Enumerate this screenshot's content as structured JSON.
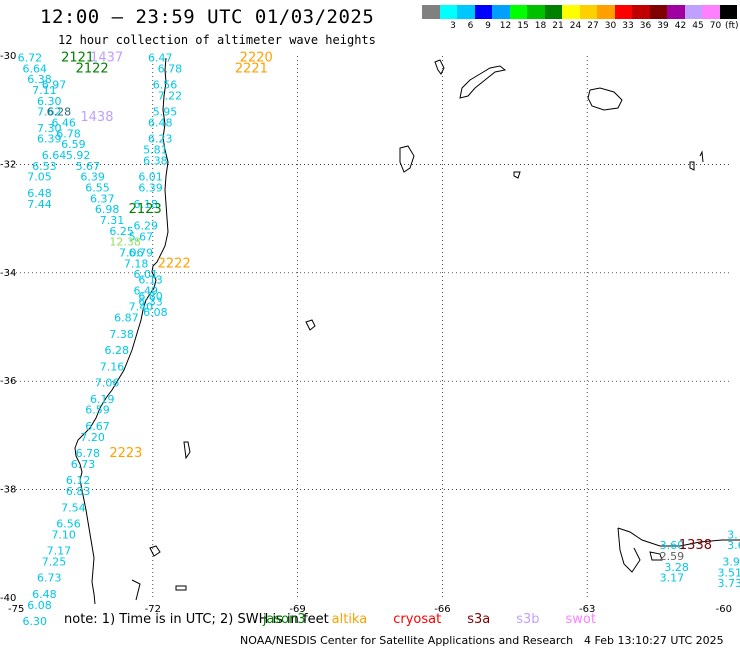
{
  "title": "12:00 — 23:59 UTC 01/03/2025",
  "subtitle": "12 hour collection of altimeter wave heights",
  "legend": {
    "unit": "(ft)",
    "swatches": [
      {
        "label": "",
        "color": "#808080"
      },
      {
        "label": "3",
        "color": "#00ffff"
      },
      {
        "label": "6",
        "color": "#00c8ff"
      },
      {
        "label": "9",
        "color": "#0000ff"
      },
      {
        "label": "12",
        "color": "#00a0ff"
      },
      {
        "label": "15",
        "color": "#00ff00"
      },
      {
        "label": "18",
        "color": "#00c000"
      },
      {
        "label": "21",
        "color": "#008000"
      },
      {
        "label": "24",
        "color": "#ffff00"
      },
      {
        "label": "27",
        "color": "#ffd000"
      },
      {
        "label": "30",
        "color": "#ffa000"
      },
      {
        "label": "33",
        "color": "#ff0000"
      },
      {
        "label": "36",
        "color": "#c00000"
      },
      {
        "label": "39",
        "color": "#800000"
      },
      {
        "label": "42",
        "color": "#a000a0"
      },
      {
        "label": "45",
        "color": "#c0a0ff"
      },
      {
        "label": "70",
        "color": "#ff80ff"
      },
      {
        "label": "",
        "color": "#000000"
      }
    ]
  },
  "axes": {
    "lat_ticks": [
      "-30",
      "-32",
      "-34",
      "-36",
      "-38",
      "-40"
    ],
    "lon_ticks": [
      "-75",
      "-72",
      "-69",
      "-66",
      "-63",
      "-60"
    ]
  },
  "time_labels": [
    {
      "text": "2121",
      "color": "#008000",
      "lon": -73.9,
      "lat": -30.1
    },
    {
      "text": "2122",
      "color": "#008000",
      "lon": -73.6,
      "lat": -30.3
    },
    {
      "text": "1437",
      "color": "#c0a0ff",
      "lon": -73.3,
      "lat": -30.1
    },
    {
      "text": "1438",
      "color": "#c0a0ff",
      "lon": -73.5,
      "lat": -31.2
    },
    {
      "text": "2220",
      "color": "#ffa000",
      "lon": -70.2,
      "lat": -30.1
    },
    {
      "text": "2221",
      "color": "#ffa000",
      "lon": -70.3,
      "lat": -30.3
    },
    {
      "text": "2123",
      "color": "#008000",
      "lon": -72.5,
      "lat": -32.9
    },
    {
      "text": "2222",
      "color": "#ffa000",
      "lon": -71.9,
      "lat": -33.9
    },
    {
      "text": "2223",
      "color": "#ffa000",
      "lon": -72.9,
      "lat": -37.4
    },
    {
      "text": "1338",
      "color": "#800000",
      "lon": -61.1,
      "lat": -39.1
    }
  ],
  "wave_values": [
    {
      "text": "6.72",
      "lon": -74.8,
      "lat": -30.1
    },
    {
      "text": "6.64",
      "lon": -74.7,
      "lat": -30.3
    },
    {
      "text": "6.38",
      "lon": -74.6,
      "lat": -30.5
    },
    {
      "text": "6.97",
      "lon": -74.3,
      "lat": -30.6
    },
    {
      "text": "7.11",
      "lon": -74.5,
      "lat": -30.7
    },
    {
      "text": "6.30",
      "lon": -74.4,
      "lat": -30.9
    },
    {
      "text": "7.62",
      "lon": -74.4,
      "lat": -31.1
    },
    {
      "text": "6.46",
      "lon": -74.1,
      "lat": -31.3
    },
    {
      "text": "7.30",
      "lon": -74.4,
      "lat": -31.4
    },
    {
      "text": "6.78",
      "lon": -74.0,
      "lat": -31.5
    },
    {
      "text": "6.39",
      "lon": -74.4,
      "lat": -31.6
    },
    {
      "text": "6.59",
      "lon": -73.9,
      "lat": -31.7
    },
    {
      "text": "6.64",
      "lon": -74.3,
      "lat": -31.9
    },
    {
      "text": "5.92",
      "lon": -73.8,
      "lat": -31.9
    },
    {
      "text": "6.53",
      "lon": -74.5,
      "lat": -32.1
    },
    {
      "text": "5.67",
      "lon": -73.6,
      "lat": -32.1
    },
    {
      "text": "7.05",
      "lon": -74.6,
      "lat": -32.3
    },
    {
      "text": "6.39",
      "lon": -73.5,
      "lat": -32.3
    },
    {
      "text": "6.48",
      "lon": -74.6,
      "lat": -32.6
    },
    {
      "text": "6.55",
      "lon": -73.4,
      "lat": -32.5
    },
    {
      "text": "7.44",
      "lon": -74.6,
      "lat": -32.8
    },
    {
      "text": "6.37",
      "lon": -73.3,
      "lat": -32.7
    },
    {
      "text": "6.98",
      "lon": -73.2,
      "lat": -32.9
    },
    {
      "text": "7.31",
      "lon": -73.1,
      "lat": -33.1
    },
    {
      "text": "6.25",
      "lon": -72.9,
      "lat": -33.3
    },
    {
      "text": "7.06",
      "lon": -72.7,
      "lat": -33.7
    },
    {
      "text": "7.18",
      "lon": -72.6,
      "lat": -33.9
    },
    {
      "text": "6.01",
      "lon": -72.4,
      "lat": -34.1
    },
    {
      "text": "6.13",
      "lon": -72.3,
      "lat": -34.2
    },
    {
      "text": "6.49",
      "lon": -72.4,
      "lat": -34.4
    },
    {
      "text": "6.80",
      "lon": -72.3,
      "lat": -34.5
    },
    {
      "text": "7.40",
      "lon": -72.5,
      "lat": -34.7
    },
    {
      "text": "6.87",
      "lon": -72.8,
      "lat": -34.9
    },
    {
      "text": "7.38",
      "lon": -72.9,
      "lat": -35.2
    },
    {
      "text": "6.28",
      "lon": -73.0,
      "lat": -35.5
    },
    {
      "text": "7.16",
      "lon": -73.1,
      "lat": -35.8
    },
    {
      "text": "7.06",
      "lon": -73.2,
      "lat": -36.1
    },
    {
      "text": "6.19",
      "lon": -73.3,
      "lat": -36.4
    },
    {
      "text": "6.59",
      "lon": -73.4,
      "lat": -36.6
    },
    {
      "text": "6.67",
      "lon": -73.4,
      "lat": -36.9
    },
    {
      "text": "7.20",
      "lon": -73.5,
      "lat": -37.1
    },
    {
      "text": "6.78",
      "lon": -73.6,
      "lat": -37.4
    },
    {
      "text": "6.73",
      "lon": -73.7,
      "lat": -37.6
    },
    {
      "text": "6.12",
      "lon": -73.8,
      "lat": -37.9
    },
    {
      "text": "6.83",
      "lon": -73.8,
      "lat": -38.1
    },
    {
      "text": "7.54",
      "lon": -73.9,
      "lat": -38.4
    },
    {
      "text": "6.56",
      "lon": -74.0,
      "lat": -38.7
    },
    {
      "text": "7.10",
      "lon": -74.1,
      "lat": -38.9
    },
    {
      "text": "7.17",
      "lon": -74.2,
      "lat": -39.2
    },
    {
      "text": "7.25",
      "lon": -74.3,
      "lat": -39.4
    },
    {
      "text": "6.73",
      "lon": -74.4,
      "lat": -39.7
    },
    {
      "text": "6.48",
      "lon": -74.5,
      "lat": -40.0
    },
    {
      "text": "6.08",
      "lon": -74.6,
      "lat": -40.2
    },
    {
      "text": "6.30",
      "lon": -74.7,
      "lat": -40.5
    },
    {
      "text": "6.47",
      "lon": -72.1,
      "lat": -30.1
    },
    {
      "text": "6.78",
      "lon": -71.9,
      "lat": -30.3
    },
    {
      "text": "6.56",
      "lon": -72.0,
      "lat": -30.6
    },
    {
      "text": "7.22",
      "lon": -71.9,
      "lat": -30.8
    },
    {
      "text": "5.95",
      "lon": -72.0,
      "lat": -31.1
    },
    {
      "text": "6.48",
      "lon": -72.1,
      "lat": -31.3
    },
    {
      "text": "6.23",
      "lon": -72.1,
      "lat": -31.6
    },
    {
      "text": "5.81",
      "lon": -72.2,
      "lat": -31.8
    },
    {
      "text": "6.38",
      "lon": -72.2,
      "lat": -32.0
    },
    {
      "text": "6.01",
      "lon": -72.3,
      "lat": -32.3
    },
    {
      "text": "6.39",
      "lon": -72.3,
      "lat": -32.5
    },
    {
      "text": "6.18",
      "lon": -72.4,
      "lat": -32.8
    },
    {
      "text": "6.29",
      "lon": -72.4,
      "lat": -33.2
    },
    {
      "text": "5.67",
      "lon": -72.5,
      "lat": -33.4
    },
    {
      "text": "6.79",
      "lon": -72.5,
      "lat": -33.7
    },
    {
      "text": "6.33",
      "lon": -72.3,
      "lat": -34.6
    },
    {
      "text": "6.08",
      "lon": -72.2,
      "lat": -34.8
    },
    {
      "text": "3.60",
      "lon": -61.5,
      "lat": -39.1
    },
    {
      "text": "3.28",
      "lon": -61.4,
      "lat": -39.5
    },
    {
      "text": "3.17",
      "lon": -61.5,
      "lat": -39.7
    },
    {
      "text": "3.9",
      "lon": -60.2,
      "lat": -39.4
    },
    {
      "text": "3.51",
      "lon": -60.3,
      "lat": -39.6
    },
    {
      "text": "3.73",
      "lon": -60.3,
      "lat": -39.8
    },
    {
      "text": "3.6",
      "lon": -60.1,
      "lat": -39.1
    },
    {
      "text": "3.",
      "lon": -60.1,
      "lat": -38.9
    }
  ],
  "wave_gray": [
    {
      "text": "2.59",
      "lon": -61.5,
      "lat": -39.3
    }
  ],
  "wave_greenish": [
    {
      "text": "12.38",
      "lon": -72.9,
      "lat": -33.5
    }
  ],
  "wave_dark": [
    {
      "text": "6.28",
      "lon": -74.2,
      "lat": -31.1
    }
  ],
  "note": {
    "prefix": "note: 1) Time is in UTC; 2) SWH is in feet",
    "sats": [
      {
        "name": "jason3",
        "color": "#008000"
      },
      {
        "name": "altika",
        "color": "#ffa000"
      },
      {
        "name": "cryosat",
        "color": "#ff0000"
      },
      {
        "name": "s3a",
        "color": "#800000"
      },
      {
        "name": "s3b",
        "color": "#c0a0ff"
      },
      {
        "name": "swot",
        "color": "#ff80ff"
      }
    ]
  },
  "footer": "NOAA/NESDIS Center for Satellite Applications and Research",
  "stamp": "4 Feb 13:10:27 UTC 2025",
  "colors": {
    "wave": "#00c8e6",
    "coast": "#000000",
    "grid": "#000000"
  }
}
